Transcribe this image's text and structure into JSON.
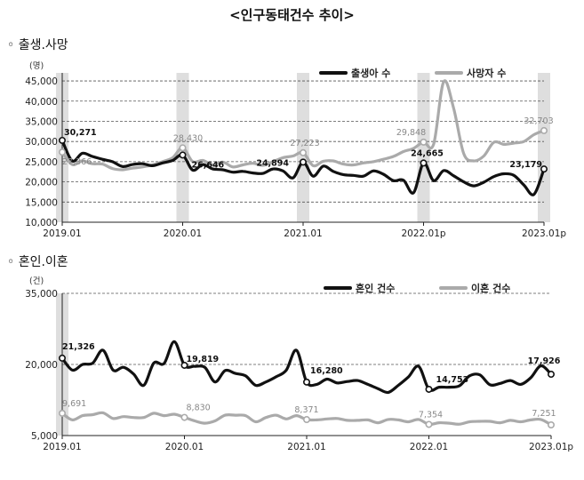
{
  "title": "<인구동태건수 추이>",
  "chart_data": [
    {
      "type": "line",
      "section_title": "◦ 출생.사망",
      "unit_label": "(명)",
      "ylim": [
        10000,
        47000
      ],
      "yticks": [
        10000,
        15000,
        20000,
        25000,
        30000,
        35000,
        40000,
        45000
      ],
      "ytick_labels": [
        "10,000",
        "15,000",
        "20,000",
        "25,000",
        "30,000",
        "35,000",
        "40,000",
        "45,000"
      ],
      "xlim": [
        0,
        48
      ],
      "xtick_positions": [
        0,
        12,
        24,
        36,
        48
      ],
      "xtick_labels": [
        "2019.01",
        "2020.01",
        "2021.01",
        "2022.01p",
        "2023.01p"
      ],
      "shaded_months": [
        0,
        12,
        24,
        36,
        48
      ],
      "series": [
        {
          "name": "출생아 수",
          "color": "#111111",
          "values": [
            30271,
            25200,
            27100,
            26300,
            25600,
            25000,
            23800,
            24300,
            24500,
            24000,
            24700,
            25300,
            26646,
            22900,
            24300,
            23200,
            23000,
            22400,
            22600,
            22200,
            22100,
            23200,
            22700,
            21000,
            24894,
            21400,
            23900,
            22600,
            21800,
            21600,
            21400,
            22700,
            21900,
            20300,
            20400,
            17300,
            24665,
            20300,
            22800,
            21500,
            20000,
            19000,
            19900,
            21300,
            22000,
            21600,
            19200,
            16900,
            23179
          ]
        },
        {
          "name": "사망자 수",
          "color": "#aaaaaa",
          "values": [
            27366,
            24300,
            25200,
            24500,
            24400,
            23300,
            23000,
            23400,
            23700,
            24200,
            25000,
            26000,
            28430,
            25000,
            25300,
            24200,
            24900,
            23700,
            24200,
            24600,
            24100,
            25000,
            26000,
            26400,
            27223,
            24000,
            25100,
            25200,
            24400,
            24200,
            24700,
            25000,
            25600,
            26300,
            27500,
            28300,
            29848,
            29300,
            44800,
            38200,
            27000,
            25200,
            26400,
            29800,
            29300,
            29600,
            30000,
            31700,
            32703
          ]
        }
      ],
      "annotations": [
        {
          "month": 0,
          "series": 0,
          "label": "30,271",
          "color": "#111111"
        },
        {
          "month": 0,
          "series": 1,
          "label": "27,366",
          "color": "#888888"
        },
        {
          "month": 12,
          "series": 1,
          "label": "28,430",
          "color": "#888888"
        },
        {
          "month": 12,
          "series": 0,
          "label": "26,646",
          "color": "#111111"
        },
        {
          "month": 24,
          "series": 1,
          "label": "27,223",
          "color": "#888888"
        },
        {
          "month": 24,
          "series": 0,
          "label": "24,894",
          "color": "#111111"
        },
        {
          "month": 36,
          "series": 1,
          "label": "29,848",
          "color": "#888888"
        },
        {
          "month": 36,
          "series": 0,
          "label": "24,665",
          "color": "#111111"
        },
        {
          "month": 48,
          "series": 1,
          "label": "32,703",
          "color": "#888888"
        },
        {
          "month": 48,
          "series": 0,
          "label": "23,179",
          "color": "#111111"
        }
      ]
    },
    {
      "type": "line",
      "section_title": "◦ 혼인.이혼",
      "unit_label": "(건)",
      "ylim": [
        5000,
        35000
      ],
      "yticks": [
        5000,
        20000,
        35000
      ],
      "ytick_labels": [
        "5,000",
        "20,000",
        "35,000"
      ],
      "xlim": [
        0,
        48
      ],
      "xtick_positions": [
        0,
        12,
        24,
        36,
        48
      ],
      "xtick_labels": [
        "2019.01",
        "2020.01",
        "2021.01",
        "2022.01",
        "2023.01p"
      ],
      "shaded_months": [
        0
      ],
      "series": [
        {
          "name": "혼인 건수",
          "color": "#111111",
          "values": [
            21326,
            18800,
            20000,
            20300,
            23000,
            18800,
            19400,
            18000,
            15600,
            20300,
            20200,
            24800,
            19819,
            19600,
            19400,
            16300,
            18700,
            18100,
            17600,
            15600,
            16300,
            17400,
            18800,
            23000,
            16280,
            15800,
            16900,
            16100,
            16400,
            16600,
            15800,
            14900,
            14100,
            15600,
            17400,
            19600,
            14753,
            15200,
            15200,
            15500,
            17600,
            17800,
            15700,
            16000,
            16600,
            15800,
            17200,
            19700,
            17926
          ],
          "label_months": [
            0,
            12,
            24,
            36,
            48
          ]
        },
        {
          "name": "이혼 건수",
          "color": "#aaaaaa",
          "values": [
            9691,
            8300,
            9200,
            9400,
            9800,
            8600,
            9000,
            8800,
            8800,
            9700,
            9200,
            9500,
            8830,
            8100,
            7600,
            8100,
            9300,
            9300,
            9200,
            7900,
            8800,
            9300,
            8500,
            9200,
            8371,
            8300,
            8500,
            8600,
            8200,
            8200,
            8300,
            7700,
            8400,
            8300,
            7900,
            8400,
            7354,
            7700,
            7600,
            7400,
            7900,
            8000,
            8000,
            7700,
            8200,
            7900,
            8300,
            8400,
            7251
          ]
        }
      ],
      "annotations": [
        {
          "month": 0,
          "series": 0,
          "label": "21,326",
          "color": "#111111"
        },
        {
          "month": 0,
          "series": 1,
          "label": "9,691",
          "color": "#888888"
        },
        {
          "month": 12,
          "series": 0,
          "label": "19,819",
          "color": "#111111"
        },
        {
          "month": 12,
          "series": 1,
          "label": "8,830",
          "color": "#888888"
        },
        {
          "month": 24,
          "series": 0,
          "label": "16,280",
          "color": "#111111"
        },
        {
          "month": 24,
          "series": 1,
          "label": "8,371",
          "color": "#888888"
        },
        {
          "month": 36,
          "series": 0,
          "label": "14,753",
          "color": "#111111"
        },
        {
          "month": 36,
          "series": 1,
          "label": "7,354",
          "color": "#888888"
        },
        {
          "month": 48,
          "series": 0,
          "label": "17,926",
          "color": "#111111"
        },
        {
          "month": 48,
          "series": 1,
          "label": "7,251",
          "color": "#888888"
        }
      ]
    }
  ]
}
